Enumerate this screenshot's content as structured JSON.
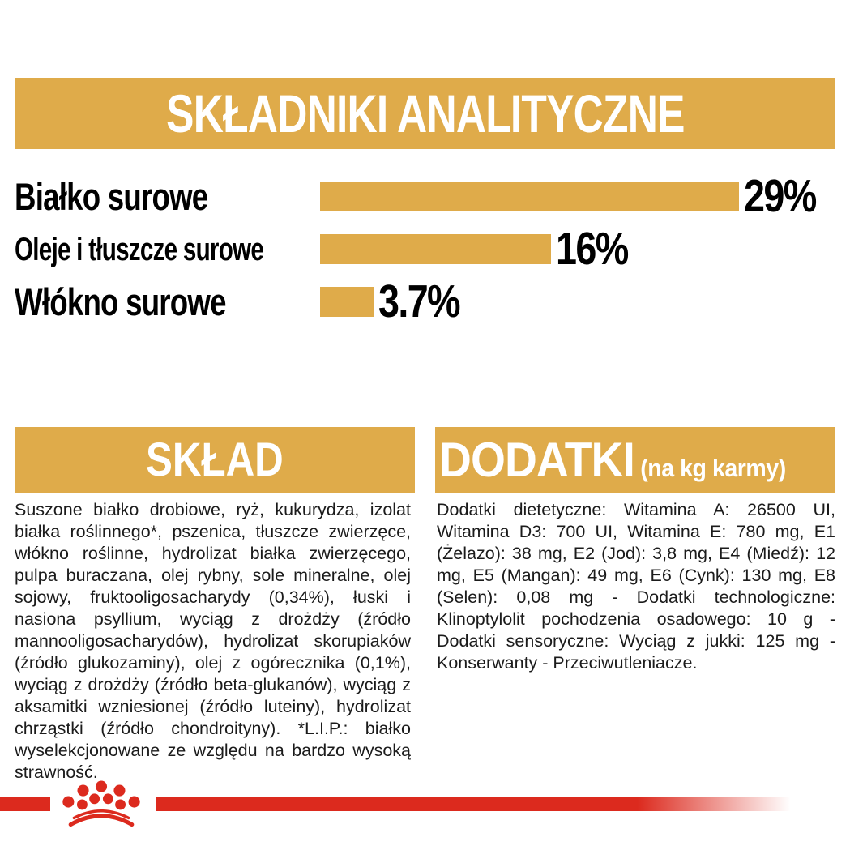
{
  "colors": {
    "gold": "#DFAB4A",
    "red": "#DC2A1E",
    "text": "#1B1B1B"
  },
  "analytical": {
    "title": "SKŁADNIKI ANALITYCZNE"
  },
  "chart_data": {
    "type": "bar",
    "orientation": "horizontal",
    "title": "SKŁADNIKI ANALITYCZNE",
    "categories": [
      "Białko surowe",
      "Oleje i tłuszcze surowe",
      "Włókno surowe"
    ],
    "values": [
      29,
      16,
      3.7
    ],
    "value_labels": [
      "29%",
      "16%",
      "3.7%"
    ],
    "xlim": [
      0,
      29
    ],
    "bar_color": "#DFAB4A",
    "grid": false,
    "legend": false
  },
  "composition": {
    "title": "SKŁAD",
    "body": "Suszone białko drobiowe, ryż, kukurydza, izolat białka roślinnego*, pszenica, tłuszcze zwierzęce, włókno roślinne, hydrolizat białka zwierzęcego, pulpa buraczana, olej rybny, sole mineralne, olej sojowy, fruktooligosacharydy (0,34%), łuski i nasiona psyllium, wyciąg z drożdży (źródło mannooligosacharydów), hydrolizat skorupiaków (źródło glukozaminy), olej z ogórecznika (0,1%), wyciąg z drożdży (źródło beta-glukanów), wyciąg z aksamitki wzniesionej (źródło luteiny), hydrolizat chrząstki (źródło chondroityny). *L.I.P.: białko wyselekcjonowane ze względu na bardzo wysoką strawność."
  },
  "additives": {
    "title": "DODATKI",
    "subtitle": "(na kg karmy)",
    "body": "Dodatki dietetyczne: Witamina A: 26500 UI, Witamina D3: 700 UI, Witamina E: 780 mg, E1 (Żelazo): 38 mg, E2 (Jod): 3,8 mg, E4 (Miedź): 12 mg, E5 (Mangan): 49 mg, E6 (Cynk): 130 mg, E8 (Selen): 0,08 mg - Dodatki technologiczne: Klinoptylolit pochodzenia osadowego: 10 g - Dodatki sensoryczne: Wyciąg z jukki: 125 mg - Konserwanty - Przeciwutleniacze."
  },
  "footer": {
    "logo": "royal-canin-crown"
  }
}
